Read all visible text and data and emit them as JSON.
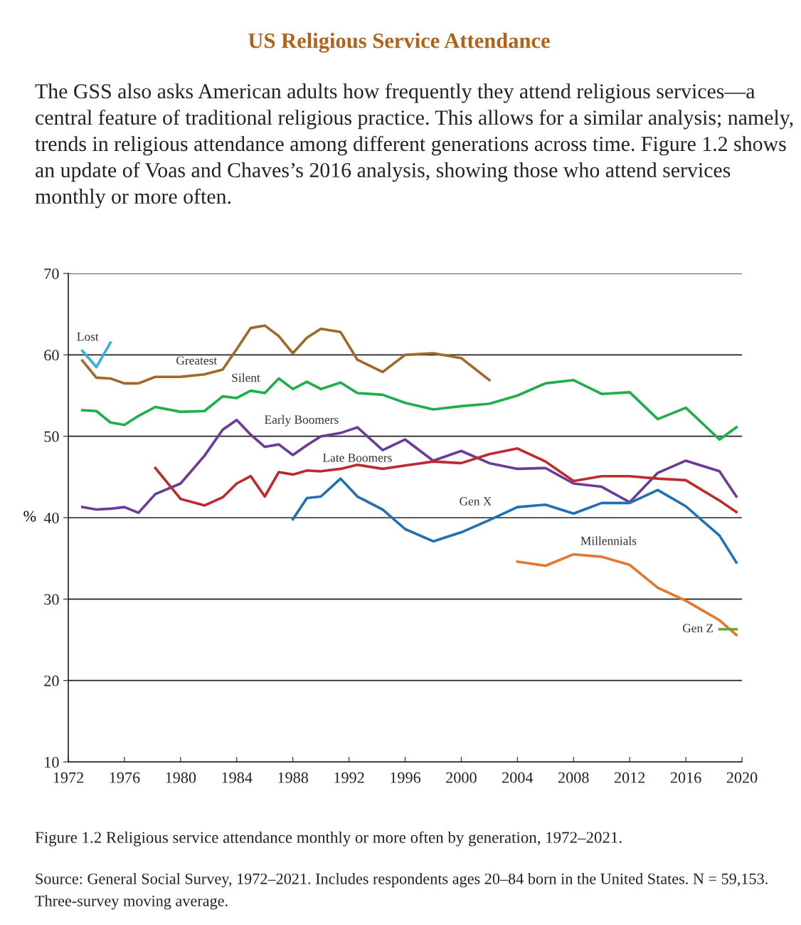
{
  "chart_data": {
    "type": "line",
    "title": "US Religious Service Attendance",
    "subtitle": "The GSS also asks American adults how frequently they attend religious services—a central feature of traditional religious practice. This allows for a similar analysis; namely, trends in religious attendance among different generations across time. Figure 1.2 shows an update of Voas and Chaves’s 2016 analysis, showing those who attend services monthly or more often.",
    "ylabel": "%",
    "annotations": [
      "Figure 1.2 Religious service attendance monthly or more often by generation, 1972–2021.",
      "Source: General Social Survey, 1972–2021. Includes respondents ages 20–84 born in the United States. N = 59,153. Three-survey moving average."
    ],
    "xlim": [
      1972,
      2020
    ],
    "xticks": [
      1972,
      1976,
      1980,
      1984,
      1988,
      1992,
      1996,
      2000,
      2004,
      2008,
      2012,
      2016,
      2020
    ],
    "ylim": [
      10,
      70
    ],
    "yticks": [
      10,
      20,
      30,
      40,
      50,
      60,
      70
    ],
    "grid": "y",
    "legend": false,
    "marker": "none",
    "line_style": "solid",
    "series": [
      {
        "name": "Lost",
        "color": "#3aaee0",
        "x": [
          1973,
          1974,
          1975
        ],
        "values": [
          60.5,
          58.5,
          61.5
        ]
      },
      {
        "name": "Greatest",
        "color": "#a0692a",
        "x": [
          1973,
          1974,
          1975,
          1976,
          1977,
          1978.2,
          1980,
          1981.7,
          1983,
          1984,
          1985,
          1986,
          1987,
          1988,
          1989,
          1990,
          1991.4,
          1992.6,
          1994.4,
          1996,
          1998,
          2000,
          2002
        ],
        "values": [
          59.3,
          57.2,
          57.1,
          56.5,
          56.5,
          57.3,
          57.3,
          57.6,
          58.2,
          60.7,
          63.3,
          63.6,
          62.3,
          60.2,
          62.1,
          63.2,
          62.8,
          59.4,
          57.9,
          60.0,
          60.2,
          59.6,
          56.9
        ]
      },
      {
        "name": "Silent",
        "color": "#1fae4b",
        "x": [
          1973,
          1974,
          1975,
          1976,
          1977,
          1978.2,
          1980,
          1981.7,
          1983,
          1984,
          1985,
          1986,
          1987,
          1988,
          1989,
          1990,
          1991.4,
          1992.6,
          1994.4,
          1996,
          1998,
          2000,
          2002,
          2004,
          2006,
          2008,
          2010,
          2012,
          2014,
          2016,
          2018.4,
          2019.6
        ],
        "values": [
          53.2,
          53.1,
          51.7,
          51.4,
          52.5,
          53.6,
          53.0,
          53.1,
          54.9,
          54.7,
          55.6,
          55.3,
          57.1,
          55.8,
          56.7,
          55.8,
          56.6,
          55.3,
          55.1,
          54.1,
          53.3,
          53.7,
          54.0,
          55.0,
          56.5,
          56.9,
          55.2,
          55.4,
          52.1,
          53.5,
          49.6,
          51.1
        ]
      },
      {
        "name": "Early Boomers",
        "color": "#6c3a99",
        "x": [
          1973,
          1974,
          1975,
          1976,
          1977,
          1978.2,
          1980,
          1981.7,
          1983,
          1984,
          1985,
          1986,
          1987,
          1988,
          1989,
          1990,
          1991.4,
          1992.6,
          1994.4,
          1996,
          1998,
          2000,
          2002,
          2004,
          2006,
          2008,
          2010,
          2012,
          2014,
          2016,
          2018.4,
          2019.6
        ],
        "values": [
          41.3,
          41.0,
          41.1,
          41.3,
          40.6,
          42.9,
          44.2,
          47.6,
          50.8,
          52.0,
          50.2,
          48.7,
          49.0,
          47.7,
          48.9,
          50.0,
          50.4,
          51.1,
          48.3,
          49.6,
          47.0,
          48.2,
          46.7,
          46.0,
          46.1,
          44.2,
          43.8,
          41.9,
          45.5,
          47.0,
          45.7,
          42.6
        ]
      },
      {
        "name": "Late Boomers",
        "color": "#bf2a2e",
        "x": [
          1978.2,
          1980,
          1981.7,
          1983,
          1984,
          1985,
          1986,
          1987,
          1988,
          1989,
          1990,
          1991.4,
          1992.6,
          1994.4,
          1996,
          1998,
          2000,
          2002,
          2004,
          2006,
          2008,
          2010,
          2012,
          2014,
          2016,
          2018.4,
          2019.6
        ],
        "values": [
          46.1,
          42.3,
          41.5,
          42.5,
          44.2,
          45.1,
          42.6,
          45.6,
          45.3,
          45.8,
          45.7,
          46.0,
          46.5,
          46.0,
          46.4,
          46.9,
          46.7,
          47.8,
          48.5,
          46.9,
          44.5,
          45.1,
          45.1,
          44.8,
          44.6,
          42.1,
          40.7
        ]
      },
      {
        "name": "Gen X",
        "color": "#2070b8",
        "x": [
          1988,
          1989,
          1990,
          1991.4,
          1992.6,
          1994.4,
          1996,
          1998,
          2000,
          2002,
          2004,
          2006,
          2008,
          2010,
          2012,
          2014,
          2016,
          2018.4,
          2019.6
        ],
        "values": [
          39.8,
          42.4,
          42.6,
          44.8,
          42.6,
          41.0,
          38.6,
          37.1,
          38.2,
          39.7,
          41.3,
          41.6,
          40.5,
          41.8,
          41.8,
          43.4,
          41.4,
          37.8,
          34.5
        ]
      },
      {
        "name": "Millennials",
        "color": "#e5762b",
        "x": [
          2004,
          2006,
          2008,
          2010,
          2012,
          2014,
          2016,
          2018.4,
          2019.6
        ],
        "values": [
          34.6,
          34.1,
          35.5,
          35.2,
          34.2,
          31.4,
          29.8,
          27.4,
          25.6
        ]
      },
      {
        "name": "Gen Z",
        "color": "#6aa33a",
        "x": [
          2018.4,
          2019.6
        ],
        "values": [
          26.3,
          26.3
        ]
      }
    ]
  }
}
